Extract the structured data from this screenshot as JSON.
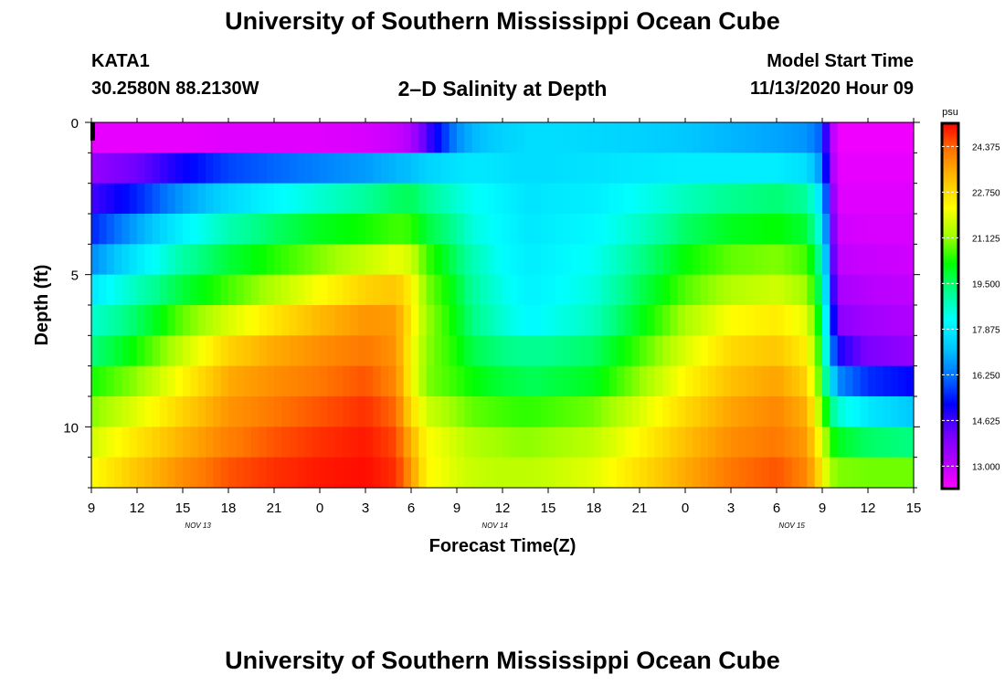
{
  "header": {
    "title": "University of Southern Mississippi Ocean Cube",
    "station": "KATA1",
    "coords": "30.2580N 88.2130W",
    "plot_title": "2–D Salinity at Depth",
    "model_label": "Model Start Time",
    "model_date": "11/13/2020 Hour 09"
  },
  "footer": {
    "title": "University of Southern Mississippi Ocean Cube"
  },
  "chart_data": {
    "type": "heatmap",
    "title": "2–D Salinity at Depth",
    "xlabel": "Forecast Time(Z)",
    "ylabel": "Depth (ft)",
    "x_tick_labels": [
      "9",
      "12",
      "15",
      "18",
      "21",
      "0",
      "3",
      "6",
      "9",
      "12",
      "15",
      "18",
      "21",
      "0",
      "3",
      "6",
      "9",
      "12",
      "15"
    ],
    "date_labels": [
      {
        "label": "NOV 13",
        "hour_offset": 7
      },
      {
        "label": "NOV 14",
        "hour_offset": 26.5
      },
      {
        "label": "NOV 15",
        "hour_offset": 46
      }
    ],
    "x_range_hours": [
      0,
      54
    ],
    "y_ticks": [
      0,
      5,
      10
    ],
    "y_tick_labels": [
      "0",
      "5",
      "10"
    ],
    "y_range": [
      0,
      12
    ],
    "colorbar": {
      "unit": "psu",
      "min": 12.2,
      "max": 25.2,
      "tick_values": [
        24.375,
        22.75,
        21.125,
        19.5,
        17.875,
        16.25,
        14.625,
        13.0
      ],
      "tick_labels": [
        "24.375",
        "22.750",
        "21.125",
        "19.500",
        "17.875",
        "16.250",
        "14.625",
        "13.000"
      ],
      "colors": [
        "#ff00ff",
        "#b000ff",
        "#7000ff",
        "#0000ff",
        "#0070ff",
        "#00c8ff",
        "#00ffff",
        "#00ff90",
        "#00ff00",
        "#a0ff00",
        "#ffff00",
        "#ffc000",
        "#ff7800",
        "#ff0000"
      ]
    },
    "depth_layers": [
      0.5,
      1.5,
      2.5,
      3.5,
      4.5,
      5.5,
      6.5,
      7.5,
      8.5,
      9.5,
      10.5,
      11.5
    ],
    "key_times_hours": [
      0,
      3,
      6,
      9,
      12,
      15,
      18,
      20,
      21,
      22,
      24,
      25,
      27,
      28,
      29,
      30,
      33,
      36,
      39,
      42,
      45,
      47,
      48,
      48.5,
      49,
      51,
      54
    ],
    "salinity_psu": [
      [
        12.5,
        12.5,
        12.5,
        12.6,
        12.6,
        12.6,
        12.7,
        12.9,
        13.2,
        14.5,
        16.5,
        17.0,
        17.4,
        17.5,
        17.6,
        17.6,
        17.5,
        17.4,
        17.2,
        17.0,
        16.8,
        16.6,
        16.0,
        13.5,
        12.4,
        12.4,
        12.4
      ],
      [
        13.6,
        14.2,
        15.1,
        15.8,
        16.1,
        16.4,
        16.7,
        17.0,
        17.1,
        17.4,
        17.7,
        17.8,
        17.7,
        17.6,
        17.6,
        17.6,
        17.7,
        17.8,
        17.9,
        17.9,
        17.9,
        17.6,
        16.5,
        13.8,
        12.5,
        12.5,
        12.5
      ],
      [
        14.6,
        15.5,
        16.7,
        17.5,
        18.1,
        18.6,
        19.1,
        19.5,
        19.6,
        19.2,
        18.6,
        18.3,
        18.0,
        17.8,
        17.7,
        17.8,
        17.9,
        18.3,
        18.8,
        19.2,
        19.4,
        19.1,
        17.5,
        14.5,
        12.6,
        12.6,
        12.6
      ],
      [
        15.5,
        16.8,
        18.0,
        18.9,
        19.5,
        20.0,
        20.3,
        20.6,
        20.5,
        19.8,
        19.1,
        18.5,
        18.1,
        17.9,
        17.8,
        17.9,
        18.1,
        18.7,
        19.5,
        20.0,
        20.2,
        19.8,
        18.2,
        15.0,
        12.8,
        12.7,
        12.7
      ],
      [
        16.5,
        17.8,
        19.0,
        19.8,
        20.4,
        21.0,
        21.6,
        22.0,
        21.7,
        20.6,
        19.5,
        18.9,
        18.2,
        18.0,
        17.9,
        18.0,
        18.3,
        19.2,
        20.2,
        20.8,
        21.0,
        20.6,
        18.8,
        15.5,
        13.0,
        12.9,
        12.8
      ],
      [
        17.8,
        18.8,
        19.8,
        20.6,
        21.4,
        22.2,
        22.9,
        23.1,
        22.4,
        21.0,
        19.9,
        19.1,
        18.4,
        18.1,
        18.0,
        18.1,
        18.5,
        19.6,
        20.7,
        21.4,
        21.7,
        21.2,
        19.2,
        16.0,
        13.3,
        13.1,
        13.0
      ],
      [
        18.6,
        19.5,
        20.8,
        21.8,
        22.6,
        23.3,
        23.8,
        23.7,
        22.5,
        21.2,
        20.1,
        19.3,
        18.6,
        18.3,
        18.1,
        18.3,
        18.8,
        20.0,
        21.3,
        22.2,
        22.5,
        21.9,
        19.6,
        16.5,
        13.8,
        13.4,
        13.2
      ],
      [
        19.3,
        20.3,
        21.6,
        22.9,
        23.5,
        23.9,
        24.2,
        23.8,
        22.3,
        21.1,
        20.3,
        19.7,
        19.3,
        19.2,
        19.2,
        19.2,
        19.5,
        20.6,
        21.8,
        22.8,
        23.1,
        22.4,
        20.0,
        17.0,
        15.0,
        14.0,
        13.6
      ],
      [
        20.3,
        21.1,
        22.3,
        23.5,
        23.9,
        24.2,
        24.5,
        24.0,
        22.3,
        21.0,
        20.5,
        20.2,
        19.8,
        19.7,
        19.6,
        19.7,
        20.0,
        21.1,
        22.3,
        23.2,
        23.6,
        22.9,
        20.3,
        18.0,
        16.5,
        15.6,
        15.2
      ],
      [
        21.0,
        21.9,
        22.9,
        23.8,
        24.2,
        24.5,
        24.8,
        24.3,
        22.8,
        21.7,
        21.1,
        20.8,
        20.6,
        20.5,
        20.5,
        20.6,
        20.9,
        21.8,
        22.8,
        23.6,
        24.0,
        23.4,
        21.0,
        19.5,
        18.6,
        17.8,
        17.2
      ],
      [
        21.7,
        22.6,
        23.4,
        24.1,
        24.5,
        24.8,
        25.0,
        24.6,
        23.4,
        22.2,
        21.7,
        21.4,
        21.2,
        21.1,
        21.1,
        21.2,
        21.5,
        22.3,
        23.2,
        23.9,
        24.2,
        23.7,
        21.9,
        20.5,
        20.0,
        19.5,
        19.3
      ],
      [
        22.2,
        23.1,
        23.9,
        24.5,
        24.8,
        25.0,
        25.1,
        24.8,
        23.8,
        22.3,
        21.8,
        21.6,
        21.5,
        21.5,
        21.5,
        21.6,
        21.9,
        22.7,
        23.5,
        24.2,
        24.5,
        24.0,
        22.5,
        21.3,
        21.0,
        20.9,
        20.9
      ]
    ]
  }
}
